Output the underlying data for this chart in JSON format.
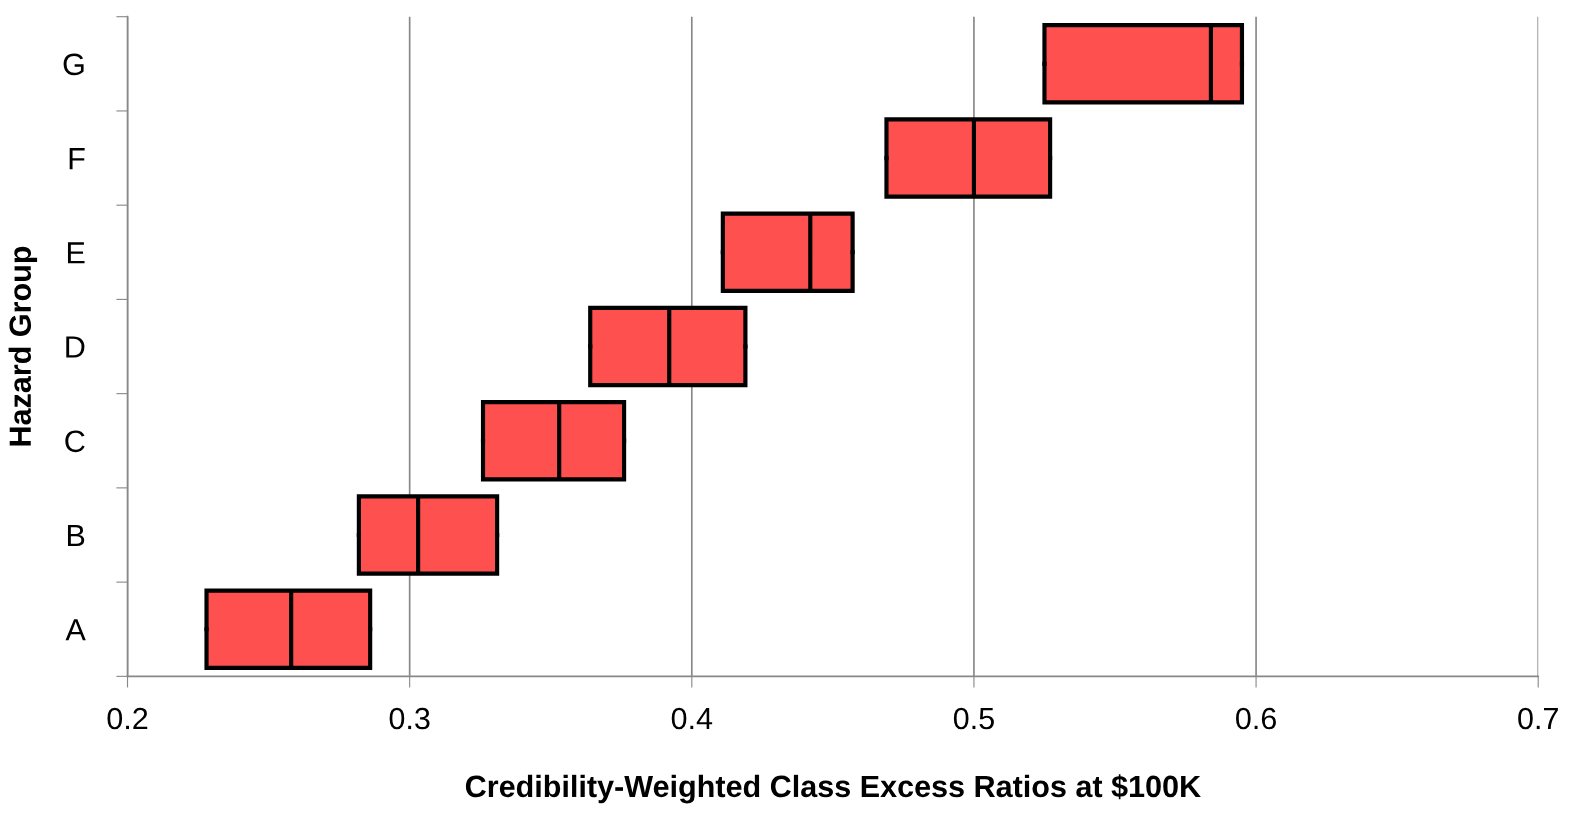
{
  "chart_data": {
    "type": "box",
    "orientation": "horizontal",
    "xlabel": "Credibility-Weighted Class Excess Ratios at $100K",
    "ylabel": "Hazard Group",
    "categories": [
      "G",
      "F",
      "E",
      "D",
      "C",
      "B",
      "A"
    ],
    "boxes": [
      {
        "low": 0.525,
        "q1": 0.525,
        "median": 0.584,
        "q3": 0.595,
        "high": 0.595
      },
      {
        "low": 0.469,
        "q1": 0.469,
        "median": 0.5,
        "q3": 0.527,
        "high": 0.527
      },
      {
        "low": 0.411,
        "q1": 0.411,
        "median": 0.442,
        "q3": 0.457,
        "high": 0.457
      },
      {
        "low": 0.364,
        "q1": 0.364,
        "median": 0.392,
        "q3": 0.419,
        "high": 0.419
      },
      {
        "low": 0.326,
        "q1": 0.326,
        "median": 0.353,
        "q3": 0.376,
        "high": 0.376
      },
      {
        "low": 0.282,
        "q1": 0.282,
        "median": 0.303,
        "q3": 0.331,
        "high": 0.331
      },
      {
        "low": 0.228,
        "q1": 0.228,
        "median": 0.258,
        "q3": 0.286,
        "high": 0.286
      }
    ],
    "color": "#ff5050",
    "xlim": [
      0.2,
      0.7
    ],
    "xticks": [
      0.2,
      0.3,
      0.4,
      0.5,
      0.6,
      0.7
    ],
    "grid": "x"
  }
}
